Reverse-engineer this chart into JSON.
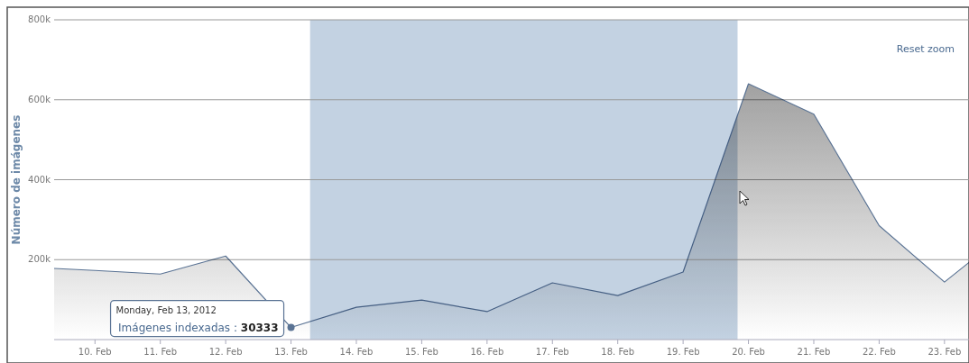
{
  "chart_data": {
    "type": "area",
    "ylabel": "Número de imágenes",
    "x": [
      "2012-02-09T09:00",
      "2012-02-10",
      "2012-02-11",
      "2012-02-12",
      "2012-02-13",
      "2012-02-14",
      "2012-02-15",
      "2012-02-16",
      "2012-02-17",
      "2012-02-18",
      "2012-02-19",
      "2012-02-20",
      "2012-02-21",
      "2012-02-22",
      "2012-02-23",
      "2012-02-23T09:00"
    ],
    "series": [
      {
        "color": "#5a7394",
        "values": [
          178000,
          173000,
          164000,
          209000,
          30333,
          81000,
          99000,
          70000,
          142000,
          110000,
          169000,
          640000,
          564000,
          285000,
          144000,
          193000
        ]
      }
    ],
    "xlim": [
      "2012-02-09T09:00",
      "2012-02-23T09:00"
    ],
    "xticks": [
      {
        "value": "2012-02-10",
        "label": "10. Feb"
      },
      {
        "value": "2012-02-11",
        "label": "11. Feb"
      },
      {
        "value": "2012-02-12",
        "label": "12. Feb"
      },
      {
        "value": "2012-02-13",
        "label": "13. Feb"
      },
      {
        "value": "2012-02-14",
        "label": "14. Feb"
      },
      {
        "value": "2012-02-15",
        "label": "15. Feb"
      },
      {
        "value": "2012-02-16",
        "label": "16. Feb"
      },
      {
        "value": "2012-02-17",
        "label": "17. Feb"
      },
      {
        "value": "2012-02-18",
        "label": "18. Feb"
      },
      {
        "value": "2012-02-19",
        "label": "19. Feb"
      },
      {
        "value": "2012-02-20",
        "label": "20. Feb"
      },
      {
        "value": "2012-02-21",
        "label": "21. Feb"
      },
      {
        "value": "2012-02-22",
        "label": "22. Feb"
      },
      {
        "value": "2012-02-23",
        "label": "23. Feb"
      }
    ],
    "ylim": [
      0,
      800000
    ],
    "yticks": [
      {
        "value": 200000,
        "label": "200k"
      },
      {
        "value": 400000,
        "label": "400k"
      },
      {
        "value": 600000,
        "label": "600k"
      },
      {
        "value": 800000,
        "label": "800k"
      }
    ],
    "grid": "y",
    "bands": [
      {
        "axis": "x",
        "from": "2012-02-13T07:00",
        "to": "2012-02-19T20:00",
        "color": "#c3d2e2"
      }
    ],
    "annotations": [
      {
        "text": "Imágenes indexadas : 30333",
        "x": "2012-02-13",
        "y": 30333
      },
      "Monday, Feb 13, 2012",
      "Reset zoom"
    ]
  }
}
